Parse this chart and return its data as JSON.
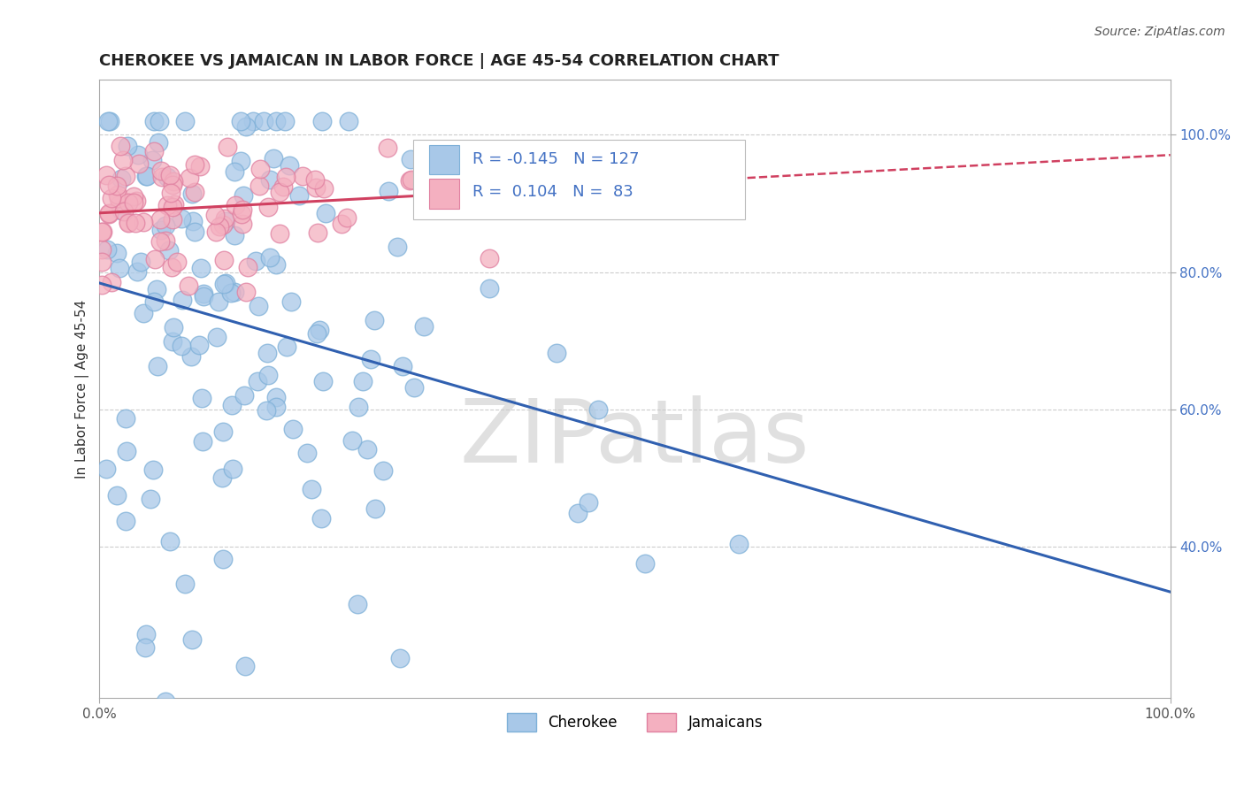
{
  "title": "CHEROKEE VS JAMAICAN IN LABOR FORCE | AGE 45-54 CORRELATION CHART",
  "source_text": "Source: ZipAtlas.com",
  "ylabel": "In Labor Force | Age 45-54",
  "xlim": [
    0.0,
    1.0
  ],
  "ylim": [
    0.18,
    1.08
  ],
  "yticks": [
    0.4,
    0.6,
    0.8,
    1.0
  ],
  "ytick_labels": [
    "40.0%",
    "60.0%",
    "80.0%",
    "100.0%"
  ],
  "xticks": [
    0.0,
    1.0
  ],
  "xtick_labels": [
    "0.0%",
    "100.0%"
  ],
  "cherokee_color": "#A8C8E8",
  "jamaican_color": "#F4B0C0",
  "cherokee_edge": "#7EB0D8",
  "jamaican_edge": "#E080A0",
  "cherokee_R": -0.145,
  "cherokee_N": 127,
  "jamaican_R": 0.104,
  "jamaican_N": 83,
  "title_fontsize": 13,
  "label_fontsize": 11,
  "tick_fontsize": 11,
  "background_color": "#FFFFFF",
  "grid_color": "#CCCCCC",
  "watermark_text": "ZIPatlas",
  "watermark_color": "#DDDDDD",
  "cherokee_line_color": "#3060B0",
  "jamaican_line_color": "#D04060",
  "blue_text_color": "#4472C4",
  "seed": 42
}
